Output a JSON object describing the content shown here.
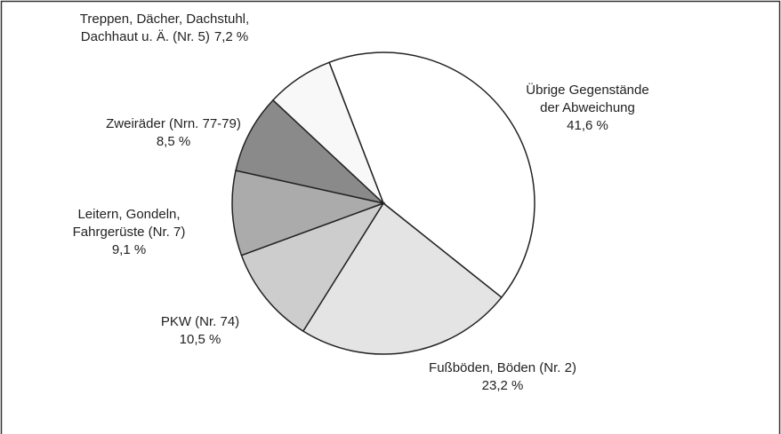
{
  "chart_data": {
    "type": "pie",
    "categories": [
      "Übrige Gegenstände der Abweichung",
      "Fußböden, Böden (Nr. 2)",
      "PKW (Nr. 74)",
      "Leitern, Gondeln, Fahrgerüste (Nr. 7)",
      "Zweiräder (Nrn. 77-79)",
      "Treppen, Dächer, Dachstuhl, Dachhaut u. Ä. (Nr. 5)"
    ],
    "values": [
      41.6,
      23.2,
      10.5,
      9.1,
      8.5,
      7.2
    ],
    "value_labels": [
      "41,6 %",
      "23,2 %",
      "10,5 %",
      "9,1 %",
      "8,5 %",
      "7,2 %"
    ],
    "colors": [
      "#ffffff",
      "#e4e4e4",
      "#cdcdcd",
      "#ababab",
      "#8a8a8a",
      "#f8f8f8"
    ]
  }
}
